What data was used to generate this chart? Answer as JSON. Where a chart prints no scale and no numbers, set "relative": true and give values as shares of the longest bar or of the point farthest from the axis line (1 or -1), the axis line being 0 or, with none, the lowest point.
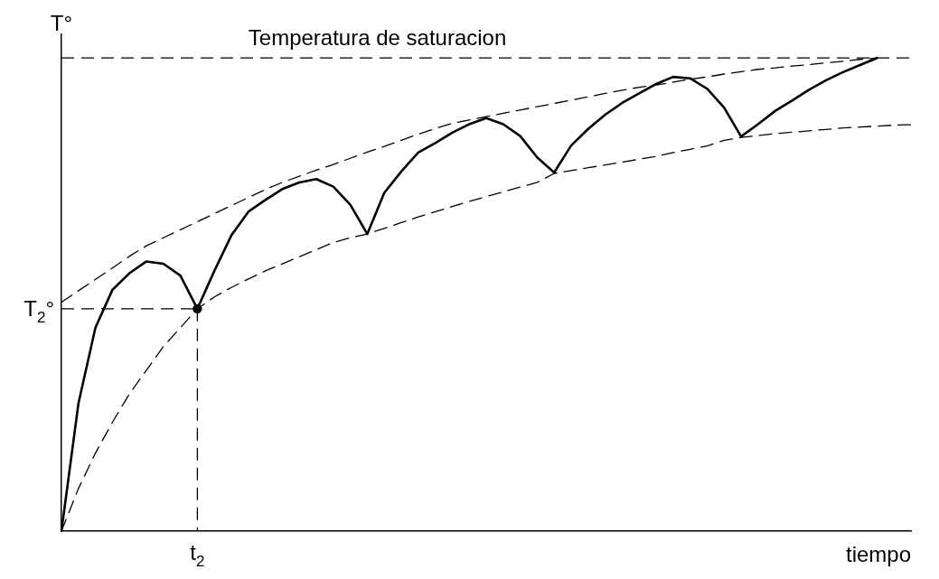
{
  "chart_data": {
    "type": "line",
    "relative": true,
    "xlabel": "tiempo",
    "ylabel": "T°",
    "grid": false,
    "legend": false,
    "marker": "none",
    "categories": [
      null,
      null,
      null,
      null,
      null,
      null,
      null,
      null,
      null,
      null,
      null,
      null,
      null,
      null,
      null,
      null,
      null,
      null,
      null,
      null,
      null,
      null,
      null,
      null,
      null,
      null,
      null,
      null,
      null,
      null,
      null,
      null,
      null,
      null,
      null,
      null,
      null,
      null,
      null,
      null,
      null,
      null,
      null,
      null,
      null,
      null,
      null,
      null,
      null,
      null,
      null
    ],
    "series": [
      {
        "color": "#000000",
        "line_style": "solid",
        "values": [
          0,
          0.27,
          0.43,
          0.51,
          0.545,
          0.57,
          0.565,
          0.54,
          0.47,
          0.55,
          0.625,
          0.675,
          0.7,
          0.723,
          0.737,
          0.744,
          0.728,
          0.69,
          0.628,
          0.715,
          0.76,
          0.8,
          0.82,
          0.842,
          0.86,
          0.873,
          0.86,
          0.835,
          0.79,
          0.758,
          0.815,
          0.85,
          0.88,
          0.905,
          0.925,
          0.945,
          0.96,
          0.957,
          0.935,
          0.895,
          0.834,
          0.86,
          0.888,
          0.91,
          0.933,
          0.953,
          0.97,
          0.985,
          1,
          null,
          null
        ]
      },
      {
        "color": "#000000",
        "line_style": "dashed",
        "values": [
          0.484,
          0.508,
          0.532,
          0.556,
          0.581,
          0.603,
          0.62,
          0.637,
          0.654,
          0.671,
          0.688,
          0.705,
          0.722,
          0.737,
          0.75,
          0.763,
          0.775,
          0.788,
          0.801,
          0.813,
          0.826,
          0.839,
          0.851,
          0.862,
          0.869,
          0.876,
          0.883,
          0.89,
          0.897,
          0.904,
          0.911,
          0.918,
          0.925,
          0.932,
          0.938,
          0.943,
          0.949,
          0.955,
          0.96,
          0.966,
          0.971,
          0.976,
          0.979,
          0.983,
          0.986,
          0.99,
          0.993,
          0.997,
          1,
          null,
          null
        ]
      },
      {
        "color": "#000000",
        "line_style": "dashed",
        "values": [
          0,
          0.09,
          0.165,
          0.23,
          0.29,
          0.34,
          0.39,
          0.43,
          0.47,
          0.495,
          0.515,
          0.533,
          0.55,
          0.565,
          0.58,
          0.595,
          0.61,
          0.62,
          0.628,
          0.64,
          0.652,
          0.664,
          0.675,
          0.686,
          0.697,
          0.707,
          0.717,
          0.727,
          0.737,
          0.756,
          0.762,
          0.768,
          0.774,
          0.78,
          0.786,
          0.792,
          0.8,
          0.807,
          0.814,
          0.826,
          0.832,
          0.836,
          0.84,
          0.843,
          0.846,
          0.849,
          0.852,
          0.854,
          0.856,
          0.858,
          0.859
        ]
      },
      {
        "color": "#000000",
        "marker": "circle",
        "line_style": "dashed",
        "values": [
          null,
          null,
          null,
          null,
          null,
          null,
          null,
          null,
          0.47,
          null,
          null,
          null,
          null,
          null,
          null,
          null,
          null,
          null,
          null,
          null,
          null,
          null,
          null,
          null,
          null,
          null,
          null,
          null,
          null,
          null,
          null,
          null,
          null,
          null,
          null,
          null,
          null,
          null,
          null,
          null,
          null,
          null,
          null,
          null,
          null,
          null,
          null,
          null,
          null,
          null,
          null
        ]
      }
    ],
    "ref_lines": [
      {
        "axis": "y",
        "value": 1,
        "label": "Temperatura de saturacion",
        "line_style": "dashed",
        "color": "#000000"
      }
    ],
    "annotations": [
      "T$_{2}$°",
      "t$_{2}$"
    ]
  }
}
